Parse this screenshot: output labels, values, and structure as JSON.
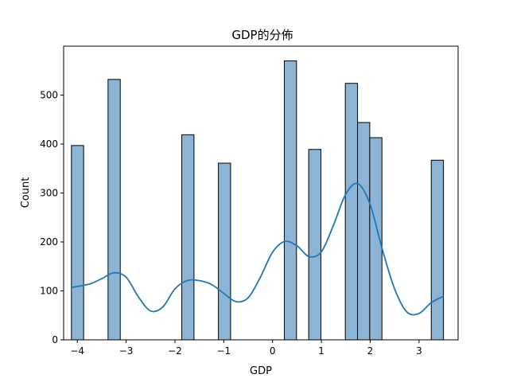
{
  "chart_data": {
    "type": "bar",
    "title": "GDP的分佈",
    "xlabel": "GDP",
    "ylabel": "Count",
    "xlim": [
      -4.28,
      3.8
    ],
    "ylim": [
      0,
      600
    ],
    "xticks": [
      -4,
      -3,
      -2,
      -1,
      0,
      1,
      2,
      3
    ],
    "xtick_labels": [
      "−4",
      "−3",
      "−2",
      "−1",
      "0",
      "1",
      "2",
      "3"
    ],
    "yticks": [
      0,
      100,
      200,
      300,
      400,
      500
    ],
    "ytick_labels": [
      "0",
      "100",
      "200",
      "300",
      "400",
      "500"
    ],
    "grid": false,
    "bin_width": 0.25,
    "bins": [
      {
        "start": -4.12,
        "count": 397
      },
      {
        "start": -3.37,
        "count": 532
      },
      {
        "start": -1.86,
        "count": 419
      },
      {
        "start": -1.11,
        "count": 361
      },
      {
        "start": 0.24,
        "count": 570
      },
      {
        "start": 0.74,
        "count": 389
      },
      {
        "start": 1.49,
        "count": 524
      },
      {
        "start": 1.74,
        "count": 444
      },
      {
        "start": 1.99,
        "count": 413
      },
      {
        "start": 3.25,
        "count": 367
      }
    ],
    "kde": {
      "x": [
        -4.12,
        -3.75,
        -3.5,
        -3.25,
        -3.0,
        -2.75,
        -2.5,
        -2.25,
        -2.0,
        -1.75,
        -1.5,
        -1.25,
        -1.0,
        -0.75,
        -0.5,
        -0.25,
        0.0,
        0.25,
        0.5,
        0.75,
        1.0,
        1.25,
        1.5,
        1.75,
        2.0,
        2.25,
        2.5,
        2.75,
        3.0,
        3.25,
        3.5
      ],
      "y": [
        107,
        114,
        125,
        137,
        128,
        88,
        59,
        67,
        104,
        121,
        121,
        113,
        95,
        78,
        86,
        128,
        179,
        201,
        192,
        170,
        180,
        235,
        298,
        319,
        276,
        184,
        104,
        57,
        54,
        76,
        89
      ]
    },
    "colors": {
      "bar_fill": "#8cb5d5",
      "bar_edge": "#000000",
      "kde_line": "#1f77b4"
    }
  }
}
